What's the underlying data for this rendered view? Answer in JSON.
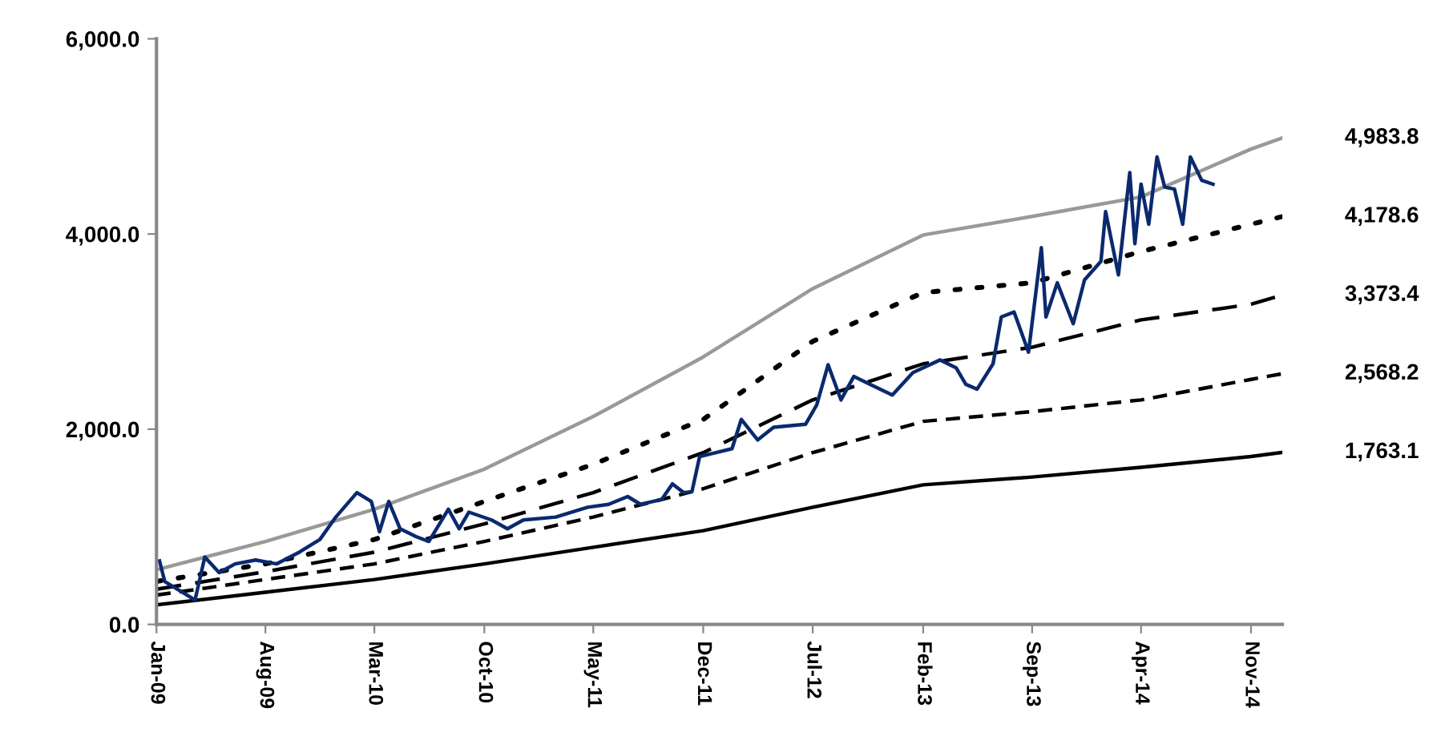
{
  "chart_data": {
    "type": "line",
    "x": [
      "2009-01",
      "2009-08",
      "2010-03",
      "2010-10",
      "2011-05",
      "2011-12",
      "2012-07",
      "2013-02",
      "2013-09",
      "2014-04",
      "2014-11",
      "2015-01"
    ],
    "series": [
      {
        "color": "#999999",
        "line_style": "solid",
        "values": [
          560,
          850,
          1180,
          1590,
          2130,
          2740,
          3440,
          3990,
          4180,
          4380,
          4870,
          4983.8
        ]
      },
      {
        "color": "#000000",
        "line_style": "dotted",
        "values": [
          440,
          620,
          870,
          1260,
          1640,
          2100,
          2900,
          3400,
          3500,
          3820,
          4100,
          4178.6
        ]
      },
      {
        "color": "#000000",
        "line_style": "dashed",
        "values": [
          360,
          540,
          740,
          1030,
          1350,
          1760,
          2300,
          2670,
          2840,
          3120,
          3280,
          3373.4
        ]
      },
      {
        "color": "#000000",
        "line_style": "dashed",
        "values": [
          300,
          460,
          620,
          850,
          1100,
          1390,
          1760,
          2080,
          2180,
          2300,
          2510,
          2568.2
        ]
      },
      {
        "color": "#000000",
        "line_style": "solid",
        "values": [
          200,
          330,
          460,
          620,
          790,
          960,
          1200,
          1430,
          1510,
          1610,
          1720,
          1763.1
        ]
      },
      {
        "color": "#0a2a6e",
        "line_style": "solid",
        "x": [
          "2009-01-07",
          "2009-01-17",
          "2009-03-17",
          "2009-04-05",
          "2009-05-03",
          "2009-06-03",
          "2009-07-13",
          "2009-08-23",
          "2009-10-06",
          "2009-11-15",
          "2009-12-16",
          "2010-01-26",
          "2010-02-23",
          "2010-03-11",
          "2010-03-29",
          "2010-04-20",
          "2010-05-21",
          "2010-06-15",
          "2010-07-23",
          "2010-08-13",
          "2010-09-01",
          "2010-10-15",
          "2010-11-15",
          "2010-12-16",
          "2011-02-17",
          "2011-04-20",
          "2011-05-31",
          "2011-07-07",
          "2011-08-01",
          "2011-09-11",
          "2011-10-02",
          "2011-10-24",
          "2011-11-09",
          "2011-11-24",
          "2011-12-26",
          "2012-01-26",
          "2012-02-13",
          "2012-03-16",
          "2012-04-16",
          "2012-06-17",
          "2012-07-09",
          "2012-07-31",
          "2012-08-25",
          "2012-09-19",
          "2012-10-20",
          "2012-12-03",
          "2013-01-12",
          "2013-03-06",
          "2013-04-06",
          "2013-04-25",
          "2013-05-17",
          "2013-06-17",
          "2013-07-03",
          "2013-07-28",
          "2013-08-25",
          "2013-09-19",
          "2013-09-28",
          "2013-10-20",
          "2013-11-20",
          "2013-12-12",
          "2014-01-13",
          "2014-01-22",
          "2014-02-16",
          "2014-03-10",
          "2014-03-20",
          "2014-04-01",
          "2014-04-16",
          "2014-05-02",
          "2014-05-17",
          "2014-06-05",
          "2014-06-21",
          "2014-07-06",
          "2014-07-28",
          "2014-08-19"
        ],
        "values": [
          650,
          440,
          250,
          690,
          530,
          620,
          660,
          620,
          740,
          870,
          1100,
          1350,
          1260,
          950,
          1260,
          980,
          900,
          850,
          1180,
          980,
          1150,
          1070,
          980,
          1070,
          1100,
          1200,
          1230,
          1310,
          1230,
          1280,
          1440,
          1350,
          1360,
          1720,
          1760,
          1800,
          2100,
          1890,
          2020,
          2050,
          2250,
          2660,
          2300,
          2540,
          2460,
          2350,
          2580,
          2710,
          2630,
          2460,
          2410,
          2670,
          3150,
          3200,
          2790,
          3860,
          3150,
          3500,
          3080,
          3530,
          3720,
          4230,
          3580,
          4630,
          3900,
          4510,
          4100,
          4790,
          4480,
          4460,
          4100,
          4790,
          4550,
          4510
        ]
      }
    ],
    "xlim": [
      "2009-01-01",
      "2015-01-01"
    ],
    "xticks": [
      {
        "value": "2009-01-01",
        "label": "Jan-09"
      },
      {
        "value": "2009-08-01",
        "label": "Aug-09"
      },
      {
        "value": "2010-03-01",
        "label": "Mar-10"
      },
      {
        "value": "2010-10-01",
        "label": "Oct-10"
      },
      {
        "value": "2011-05-01",
        "label": "May-11"
      },
      {
        "value": "2011-12-01",
        "label": "Dec-11"
      },
      {
        "value": "2012-07-01",
        "label": "Jul-12"
      },
      {
        "value": "2013-02-01",
        "label": "Feb-13"
      },
      {
        "value": "2013-09-01",
        "label": "Sep-13"
      },
      {
        "value": "2014-04-01",
        "label": "Apr-14"
      },
      {
        "value": "2014-11-01",
        "label": "Nov-14"
      }
    ],
    "ylim": [
      0,
      6000
    ],
    "yticks": [
      {
        "value": 0,
        "label": "0.0"
      },
      {
        "value": 2000,
        "label": "2,000.0"
      },
      {
        "value": 4000,
        "label": "4,000.0"
      },
      {
        "value": 6000,
        "label": "6,000.0"
      }
    ],
    "annotations": [
      {
        "text": "4,983.8",
        "x": "2015-01",
        "y": 4983.8
      },
      {
        "text": "4,178.6",
        "x": "2015-01",
        "y": 4178.6
      },
      {
        "text": "3,373.4",
        "x": "2015-01",
        "y": 3373.4
      },
      {
        "text": "2,568.2",
        "x": "2015-01",
        "y": 2568.2
      },
      {
        "text": "1,763.1",
        "x": "2015-01",
        "y": 1763.1
      }
    ],
    "grid": false,
    "marker": "none"
  }
}
